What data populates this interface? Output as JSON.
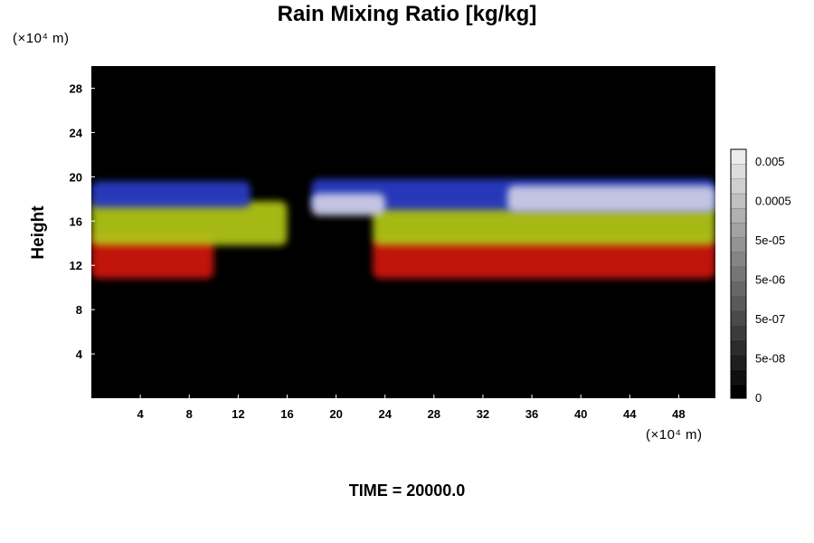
{
  "chart_data": {
    "type": "heatmap",
    "title": "Rain Mixing Ratio [kg/kg]",
    "ylabel": "Height",
    "x_unit": "(×10⁴ m)",
    "y_unit": "(×10⁴ m)",
    "footer": "TIME = 20000.0",
    "xlim": [
      0,
      51
    ],
    "ylim": [
      0,
      30
    ],
    "x_ticks": [
      4,
      8,
      12,
      16,
      20,
      24,
      28,
      32,
      36,
      40,
      44,
      48
    ],
    "y_ticks": [
      4,
      8,
      12,
      16,
      20,
      24,
      28
    ],
    "background_color": "#000000",
    "layers": [
      {
        "color": "#d21410",
        "segments": [
          [
            0,
            10,
            10.8,
            14.8
          ],
          [
            23,
            51,
            10.8,
            14.5
          ]
        ]
      },
      {
        "color": "#b4c814",
        "segments": [
          [
            0,
            16,
            13.8,
            17.8
          ],
          [
            23,
            51,
            13.8,
            17.5
          ]
        ]
      },
      {
        "color": "#2a3cc8",
        "segments": [
          [
            0,
            13,
            17.2,
            19.6
          ],
          [
            18,
            51,
            17.0,
            19.8
          ]
        ]
      },
      {
        "color": "#d0d0e6",
        "segments": [
          [
            18,
            24,
            16.5,
            18.5
          ],
          [
            34,
            51,
            16.8,
            19.2
          ]
        ]
      }
    ],
    "colorbar": {
      "labels": [
        "0.005",
        "0.0005",
        "5e-05",
        "5e-06",
        "5e-07",
        "5e-08",
        "0"
      ],
      "levels": 17,
      "color_min": "#000000",
      "color_max": "#ececec"
    }
  }
}
